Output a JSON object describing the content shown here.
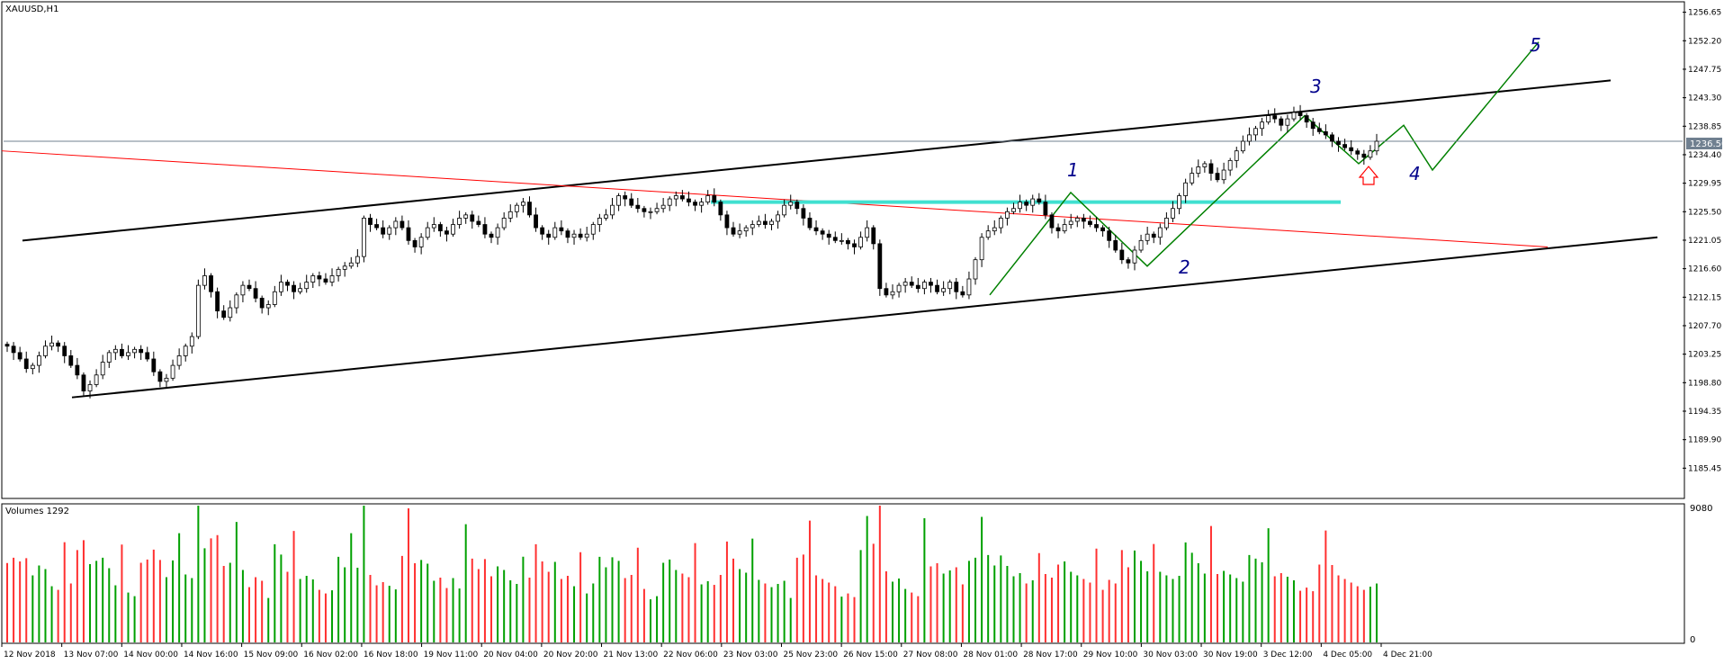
{
  "chart_data": {
    "type": "candlestick",
    "main": {
      "symbol_label": "XAUUSD,H1",
      "current_price": 1236.5,
      "current_price_label": "1236.50",
      "y_range": [
        1181.0,
        1258.0
      ],
      "y_ticks": [
        1256.65,
        1252.2,
        1247.75,
        1243.3,
        1238.85,
        1234.4,
        1229.95,
        1225.5,
        1221.05,
        1216.6,
        1212.15,
        1207.7,
        1203.25,
        1198.8,
        1194.35,
        1189.9,
        1185.45
      ],
      "y_tick_labels": [
        "1256.65",
        "1252.20",
        "1247.75",
        "1243.30",
        "1238.85",
        "1234.40",
        "1229.95",
        "1225.50",
        "1221.05",
        "1216.60",
        "1212.15",
        "1207.70",
        "1203.25",
        "1198.80",
        "1194.35",
        "1189.90",
        "1185.45"
      ],
      "closes": [
        1204.5,
        1203.5,
        1202.5,
        1201.0,
        1201.5,
        1203.0,
        1204.5,
        1205.0,
        1204.5,
        1203.0,
        1201.5,
        1200.0,
        1197.5,
        1198.5,
        1200.0,
        1202.0,
        1203.5,
        1204.0,
        1203.0,
        1203.5,
        1204.0,
        1203.5,
        1202.5,
        1200.5,
        1199.0,
        1199.5,
        1201.5,
        1203.0,
        1204.5,
        1206.0,
        1214.0,
        1215.5,
        1213.0,
        1210.0,
        1209.0,
        1210.5,
        1212.5,
        1214.0,
        1213.5,
        1212.0,
        1210.5,
        1211.0,
        1213.0,
        1214.5,
        1214.0,
        1213.0,
        1213.5,
        1214.5,
        1215.5,
        1215.0,
        1214.5,
        1215.5,
        1216.5,
        1217.0,
        1217.5,
        1218.5,
        1224.5,
        1223.5,
        1223.0,
        1222.0,
        1223.0,
        1224.0,
        1223.0,
        1221.0,
        1220.0,
        1221.5,
        1223.0,
        1223.5,
        1222.5,
        1222.0,
        1223.5,
        1224.5,
        1225.0,
        1224.0,
        1223.5,
        1222.0,
        1221.5,
        1223.0,
        1224.5,
        1225.5,
        1226.5,
        1227.0,
        1225.0,
        1223.0,
        1222.0,
        1221.5,
        1223.0,
        1222.5,
        1221.5,
        1222.0,
        1221.5,
        1222.0,
        1223.5,
        1224.5,
        1225.0,
        1226.5,
        1228.0,
        1227.5,
        1226.5,
        1226.0,
        1225.5,
        1225.5,
        1226.0,
        1226.5,
        1227.5,
        1228.0,
        1227.5,
        1227.0,
        1226.5,
        1227.0,
        1228.0,
        1227.0,
        1225.0,
        1223.0,
        1222.0,
        1222.5,
        1223.0,
        1223.5,
        1224.0,
        1223.5,
        1224.0,
        1225.0,
        1226.5,
        1227.0,
        1226.0,
        1224.5,
        1223.0,
        1222.5,
        1222.0,
        1221.5,
        1221.0,
        1221.0,
        1220.5,
        1220.0,
        1221.5,
        1223.0,
        1220.5,
        1213.5,
        1212.5,
        1213.0,
        1214.0,
        1214.5,
        1214.0,
        1213.5,
        1214.5,
        1214.0,
        1213.0,
        1213.5,
        1214.5,
        1213.0,
        1212.5,
        1215.0,
        1218.0,
        1221.5,
        1222.5,
        1223.0,
        1224.5,
        1225.5,
        1226.0,
        1227.0,
        1226.5,
        1227.5,
        1227.0,
        1225.0,
        1223.0,
        1222.5,
        1223.5,
        1224.0,
        1224.5,
        1224.0,
        1223.5,
        1223.0,
        1222.5,
        1221.0,
        1219.5,
        1218.0,
        1217.5,
        1219.5,
        1221.0,
        1222.0,
        1221.5,
        1223.0,
        1224.5,
        1226.0,
        1228.0,
        1230.0,
        1231.5,
        1232.5,
        1233.0,
        1231.5,
        1230.5,
        1232.0,
        1233.5,
        1235.0,
        1236.5,
        1237.5,
        1238.5,
        1239.5,
        1240.5,
        1240.0,
        1239.0,
        1240.0,
        1241.0,
        1240.5,
        1239.5,
        1238.5,
        1238.0,
        1237.5,
        1236.5,
        1236.0,
        1235.5,
        1235.0,
        1234.5,
        1234.0,
        1235.0,
        1236.5
      ],
      "annotations": [
        {
          "label": "1",
          "color": "#00008b"
        },
        {
          "label": "2",
          "color": "#00008b"
        },
        {
          "label": "3",
          "color": "#00008b"
        },
        {
          "label": "4",
          "color": "#00008b"
        },
        {
          "label": "5",
          "color": "#00008b"
        }
      ],
      "trendlines": [
        {
          "name": "upper-channel",
          "color": "#000000",
          "from": [
            0.0,
            1221.0
          ],
          "to": [
            1.0,
            1246.0
          ]
        },
        {
          "name": "lower-channel",
          "color": "#000000",
          "from": [
            0.0,
            1196.5
          ],
          "to": [
            1.0,
            1221.5
          ]
        },
        {
          "name": "red-trendline",
          "color": "#ff0000",
          "from": [
            0.0,
            1235.0
          ],
          "to": [
            1.0,
            1220.0
          ]
        },
        {
          "name": "cyan-level",
          "color": "#40e0d0",
          "value": 1227.0
        },
        {
          "name": "wave-path",
          "color": "#008000"
        }
      ]
    },
    "volume": {
      "label": "Volumes 1292",
      "y_range": [
        0,
        9080
      ],
      "y_tick_labels": [
        "9080",
        "0"
      ],
      "up_color": "#00a000",
      "down_color": "#ff3030"
    },
    "x_tick_labels": [
      "12 Nov 2018",
      "13 Nov 07:00",
      "14 Nov 00:00",
      "14 Nov 16:00",
      "15 Nov 09:00",
      "16 Nov 02:00",
      "16 Nov 18:00",
      "19 Nov 11:00",
      "20 Nov 04:00",
      "20 Nov 20:00",
      "21 Nov 13:00",
      "22 Nov 06:00",
      "23 Nov 03:00",
      "25 Nov 23:00",
      "26 Nov 15:00",
      "27 Nov 08:00",
      "28 Nov 01:00",
      "28 Nov 17:00",
      "29 Nov 10:00",
      "30 Nov 03:00",
      "30 Nov 19:00",
      "3 Dec 12:00",
      "4 Dec 05:00",
      "4 Dec 21:00"
    ],
    "colors": {
      "candle_up": "#ffffff",
      "candle_down": "#000000",
      "candle_outline": "#000000",
      "price_line": "#708090",
      "price_box": "#708090"
    }
  }
}
